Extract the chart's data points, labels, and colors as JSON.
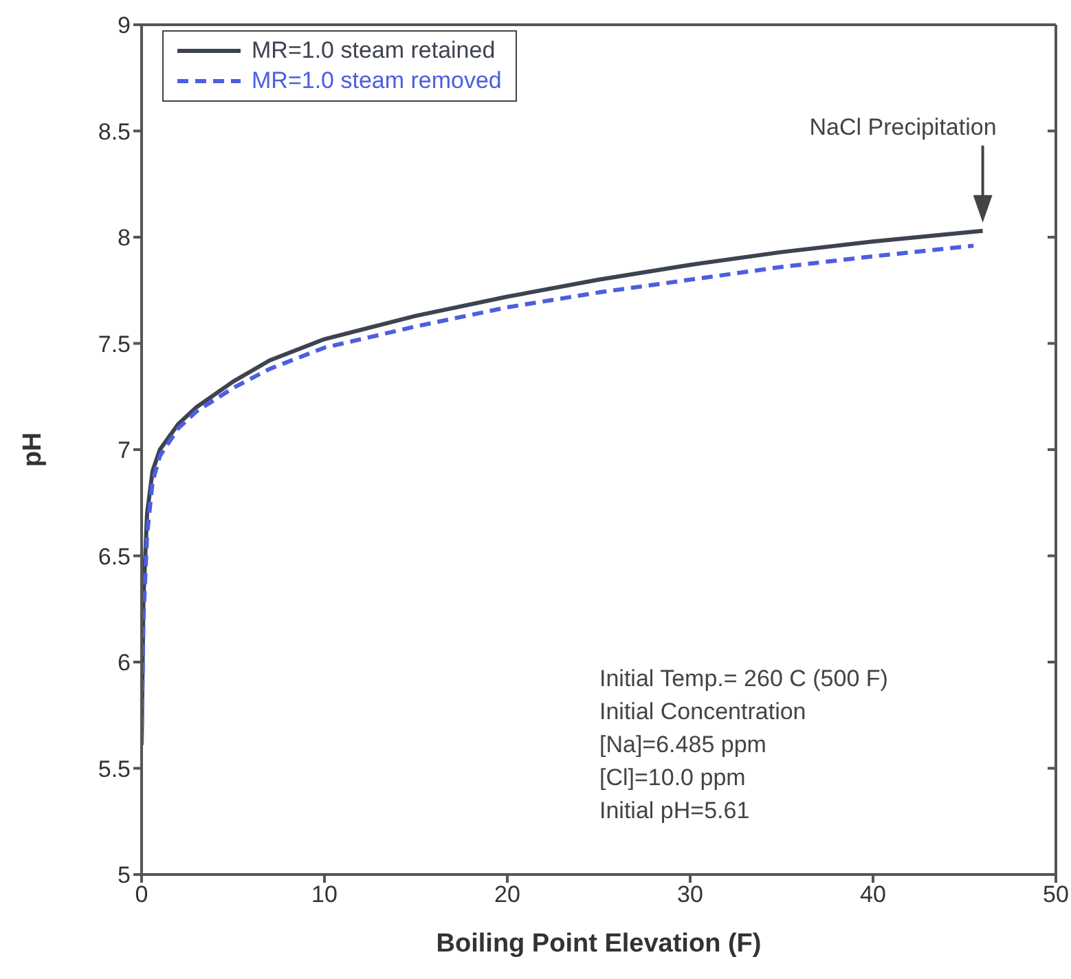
{
  "chart_data": {
    "type": "line",
    "xlabel": "Boiling Point Elevation (F)",
    "ylabel": "pH",
    "xlim": [
      0,
      50
    ],
    "xticks": [
      0,
      10,
      20,
      30,
      40,
      50
    ],
    "ylim": [
      5,
      9
    ],
    "yticks": [
      5,
      5.5,
      6,
      6.5,
      7,
      7.5,
      8,
      8.5,
      9
    ],
    "grid": false,
    "legend": "top left",
    "marker": "none",
    "series": [
      {
        "name": "MR=1.0 steam retained",
        "color": "#3d4350",
        "line_style": "solid",
        "x": [
          0,
          0.1,
          0.3,
          0.6,
          1,
          2,
          3,
          5,
          7,
          10,
          15,
          20,
          25,
          30,
          35,
          40,
          46
        ],
        "values": [
          5.61,
          6.3,
          6.7,
          6.9,
          7.0,
          7.12,
          7.2,
          7.32,
          7.42,
          7.52,
          7.63,
          7.72,
          7.8,
          7.87,
          7.93,
          7.98,
          8.03
        ]
      },
      {
        "name": "MR=1.0 steam removed",
        "color": "#4d5ee0",
        "line_style": "dashed",
        "x": [
          0,
          0.1,
          0.3,
          0.6,
          1,
          2,
          3,
          5,
          7,
          10,
          15,
          20,
          25,
          30,
          35,
          40,
          45.5
        ],
        "values": [
          5.61,
          6.2,
          6.6,
          6.85,
          6.97,
          7.1,
          7.18,
          7.29,
          7.38,
          7.48,
          7.58,
          7.67,
          7.74,
          7.8,
          7.86,
          7.91,
          7.96
        ]
      }
    ],
    "annotations": [
      "NaCl Precipitation",
      "Initial Temp.= 260 C (500 F)",
      "Initial Concentration",
      "[Na]=6.485 ppm",
      "[Cl]=10.0 ppm",
      "Initial pH=5.61"
    ]
  }
}
